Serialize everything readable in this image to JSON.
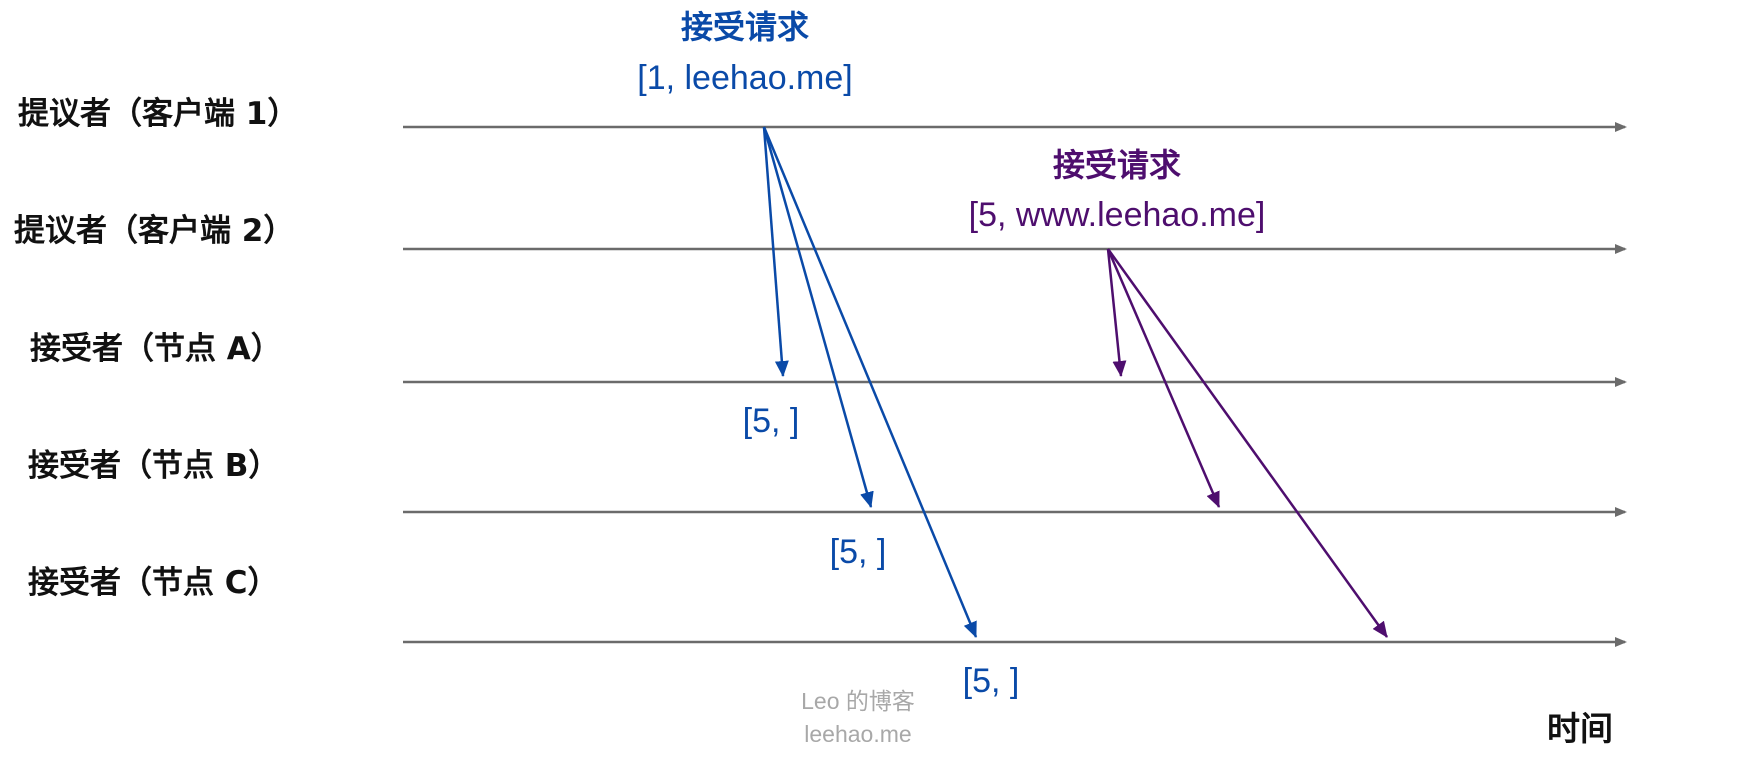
{
  "lanes": [
    {
      "label": "提议者（客户端 1）"
    },
    {
      "label": "提议者（客户端 2）"
    },
    {
      "label": "接受者（节点 A）"
    },
    {
      "label": "接受者（节点 B）"
    },
    {
      "label": "接受者（节点 C）"
    }
  ],
  "time_axis_label": "时间",
  "requests": [
    {
      "title": "接受请求",
      "value": "[1, leehao.me]",
      "color": "#0a4aa8",
      "from_lane": 0,
      "to_lanes": [
        2,
        3,
        4
      ]
    },
    {
      "title": "接受请求",
      "value": "[5, www.leehao.me]",
      "color": "#4e0e6e",
      "from_lane": 1,
      "to_lanes": [
        2,
        3,
        4
      ]
    }
  ],
  "responses": [
    {
      "text": "[5, ]",
      "lane": 2
    },
    {
      "text": "[5, ]",
      "lane": 3
    },
    {
      "text": "[5, ]",
      "lane": 4
    }
  ],
  "watermark": {
    "line1": "Leo 的博客",
    "line2": "leehao.me"
  },
  "colors": {
    "timeline": "#6b6b6b",
    "response_text": "#0a4aa8",
    "watermark": "#a8a8a8"
  }
}
